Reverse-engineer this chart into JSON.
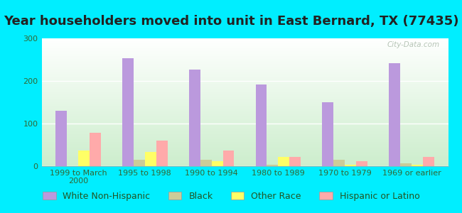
{
  "title": "Year householders moved into unit in East Bernard, TX (77435)",
  "categories": [
    "1999 to March\n2000",
    "1995 to 1998",
    "1990 to 1994",
    "1980 to 1989",
    "1970 to 1979",
    "1969 or earlier"
  ],
  "series": {
    "White Non-Hispanic": [
      130,
      253,
      227,
      191,
      150,
      242
    ],
    "Black": [
      0,
      15,
      15,
      4,
      15,
      7
    ],
    "Other Race": [
      37,
      33,
      12,
      22,
      4,
      4
    ],
    "Hispanic or Latino": [
      78,
      60,
      36,
      22,
      12,
      22
    ]
  },
  "colors": {
    "White Non-Hispanic": "#bb99dd",
    "Black": "#cccc99",
    "Other Race": "#ffff66",
    "Hispanic or Latino": "#ffaaaa"
  },
  "background_color": "#00eeff",
  "ylim": [
    0,
    300
  ],
  "yticks": [
    0,
    100,
    200,
    300
  ],
  "title_fontsize": 13,
  "legend_fontsize": 9,
  "tick_fontsize": 8,
  "bar_width": 0.17,
  "watermark": "City-Data.com"
}
